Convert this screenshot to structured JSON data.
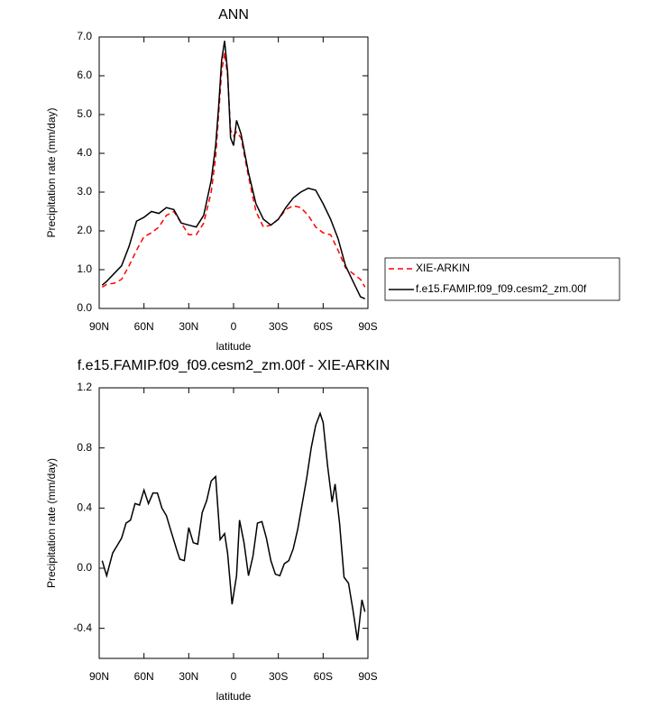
{
  "chart_data": [
    {
      "type": "line",
      "title": "ANN",
      "xlabel": "latitude",
      "ylabel": "Precipitation rate (mm/day)",
      "x": [
        88,
        85,
        80,
        75,
        70,
        65,
        60,
        55,
        50,
        45,
        40,
        35,
        30,
        25,
        20,
        15,
        12,
        10,
        8,
        6,
        4,
        2,
        0,
        -2,
        -5,
        -10,
        -15,
        -20,
        -25,
        -30,
        -35,
        -40,
        -45,
        -50,
        -55,
        -60,
        -65,
        -70,
        -75,
        -80,
        -85,
        -88
      ],
      "series": [
        {
          "name": "XIE-ARKIN",
          "color": "#ff0000",
          "line_style": "dashed",
          "values": [
            0.55,
            0.62,
            0.65,
            0.75,
            1.1,
            1.5,
            1.85,
            1.95,
            2.1,
            2.4,
            2.5,
            2.2,
            1.9,
            1.9,
            2.2,
            3.0,
            3.9,
            5.0,
            6.1,
            6.6,
            6.0,
            4.6,
            4.45,
            4.55,
            4.4,
            3.4,
            2.5,
            2.1,
            2.15,
            2.3,
            2.55,
            2.65,
            2.6,
            2.4,
            2.1,
            1.95,
            1.9,
            1.5,
            1.05,
            0.9,
            0.75,
            0.55
          ]
        },
        {
          "name": "f.e15.FAMIP.f09_f09.cesm2_zm.00f",
          "color": "#000000",
          "line_style": "solid",
          "values": [
            0.6,
            0.7,
            0.9,
            1.1,
            1.6,
            2.25,
            2.35,
            2.5,
            2.45,
            2.6,
            2.55,
            2.2,
            2.15,
            2.1,
            2.4,
            3.3,
            4.2,
            5.2,
            6.4,
            6.9,
            6.1,
            4.4,
            4.2,
            4.85,
            4.5,
            3.5,
            2.7,
            2.3,
            2.15,
            2.3,
            2.6,
            2.85,
            3.0,
            3.1,
            3.05,
            2.7,
            2.3,
            1.8,
            1.1,
            0.7,
            0.3,
            0.25
          ]
        }
      ],
      "xlim": [
        90,
        -90
      ],
      "xticks": [
        {
          "value": 90,
          "label": "90N"
        },
        {
          "value": 60,
          "label": "60N"
        },
        {
          "value": 30,
          "label": "30N"
        },
        0,
        {
          "value": -30,
          "label": "30S"
        },
        {
          "value": -60,
          "label": "60S"
        },
        {
          "value": -90,
          "label": "90S"
        }
      ],
      "ylim": [
        0,
        7
      ],
      "yticks": [
        {
          "value": 0,
          "label": "0.0"
        },
        {
          "value": 1,
          "label": "1.0"
        },
        {
          "value": 2,
          "label": "2.0"
        },
        {
          "value": 3,
          "label": "3.0"
        },
        {
          "value": 4,
          "label": "4.0"
        },
        {
          "value": 5,
          "label": "5.0"
        },
        {
          "value": 6,
          "label": "6.0"
        },
        {
          "value": 7,
          "label": "7.0"
        }
      ],
      "legend": "right",
      "grid": false
    },
    {
      "type": "line",
      "title": "f.e15.FAMIP.f09_f09.cesm2_zm.00f - XIE-ARKIN",
      "xlabel": "latitude",
      "ylabel": "Precipitation rate (mm/day)",
      "x": [
        88,
        85,
        81,
        78,
        75,
        72,
        69,
        66,
        63,
        60,
        57,
        54,
        51,
        48,
        45,
        42,
        38,
        36,
        33,
        30,
        27,
        24,
        21,
        18,
        15,
        12,
        9,
        6,
        4,
        1,
        -2,
        -4,
        -7,
        -10,
        -13,
        -16,
        -19,
        -22,
        -25,
        -28,
        -31,
        -34,
        -37,
        -40,
        -43,
        -46,
        -49,
        -52,
        -55,
        -58,
        -60,
        -63,
        -66,
        -68,
        -71,
        -74,
        -77,
        -80,
        -83,
        -86,
        -88
      ],
      "series": [
        {
          "color": "#000000",
          "line_style": "solid",
          "values": [
            0.05,
            -0.05,
            0.1,
            0.15,
            0.2,
            0.3,
            0.32,
            0.43,
            0.42,
            0.52,
            0.43,
            0.5,
            0.5,
            0.4,
            0.35,
            0.25,
            0.12,
            0.06,
            0.05,
            0.27,
            0.17,
            0.16,
            0.37,
            0.45,
            0.58,
            0.61,
            0.19,
            0.23,
            0.1,
            -0.24,
            -0.05,
            0.32,
            0.17,
            -0.05,
            0.08,
            0.3,
            0.31,
            0.2,
            0.05,
            -0.04,
            -0.05,
            0.03,
            0.05,
            0.13,
            0.26,
            0.43,
            0.6,
            0.8,
            0.95,
            1.03,
            0.97,
            0.68,
            0.44,
            0.56,
            0.3,
            -0.06,
            -0.1,
            -0.28,
            -0.48,
            -0.21,
            -0.29
          ]
        }
      ],
      "xlim": [
        90,
        -90
      ],
      "xticks": [
        {
          "value": 90,
          "label": "90N"
        },
        {
          "value": 60,
          "label": "60N"
        },
        {
          "value": 30,
          "label": "30N"
        },
        0,
        {
          "value": -30,
          "label": "30S"
        },
        {
          "value": -60,
          "label": "60S"
        },
        {
          "value": -90,
          "label": "90S"
        }
      ],
      "ylim": [
        -0.6,
        1.2
      ],
      "yticks": [
        -0.4,
        {
          "value": 0,
          "label": "0.0"
        },
        0.4,
        0.8,
        1.2
      ],
      "grid": false
    }
  ]
}
